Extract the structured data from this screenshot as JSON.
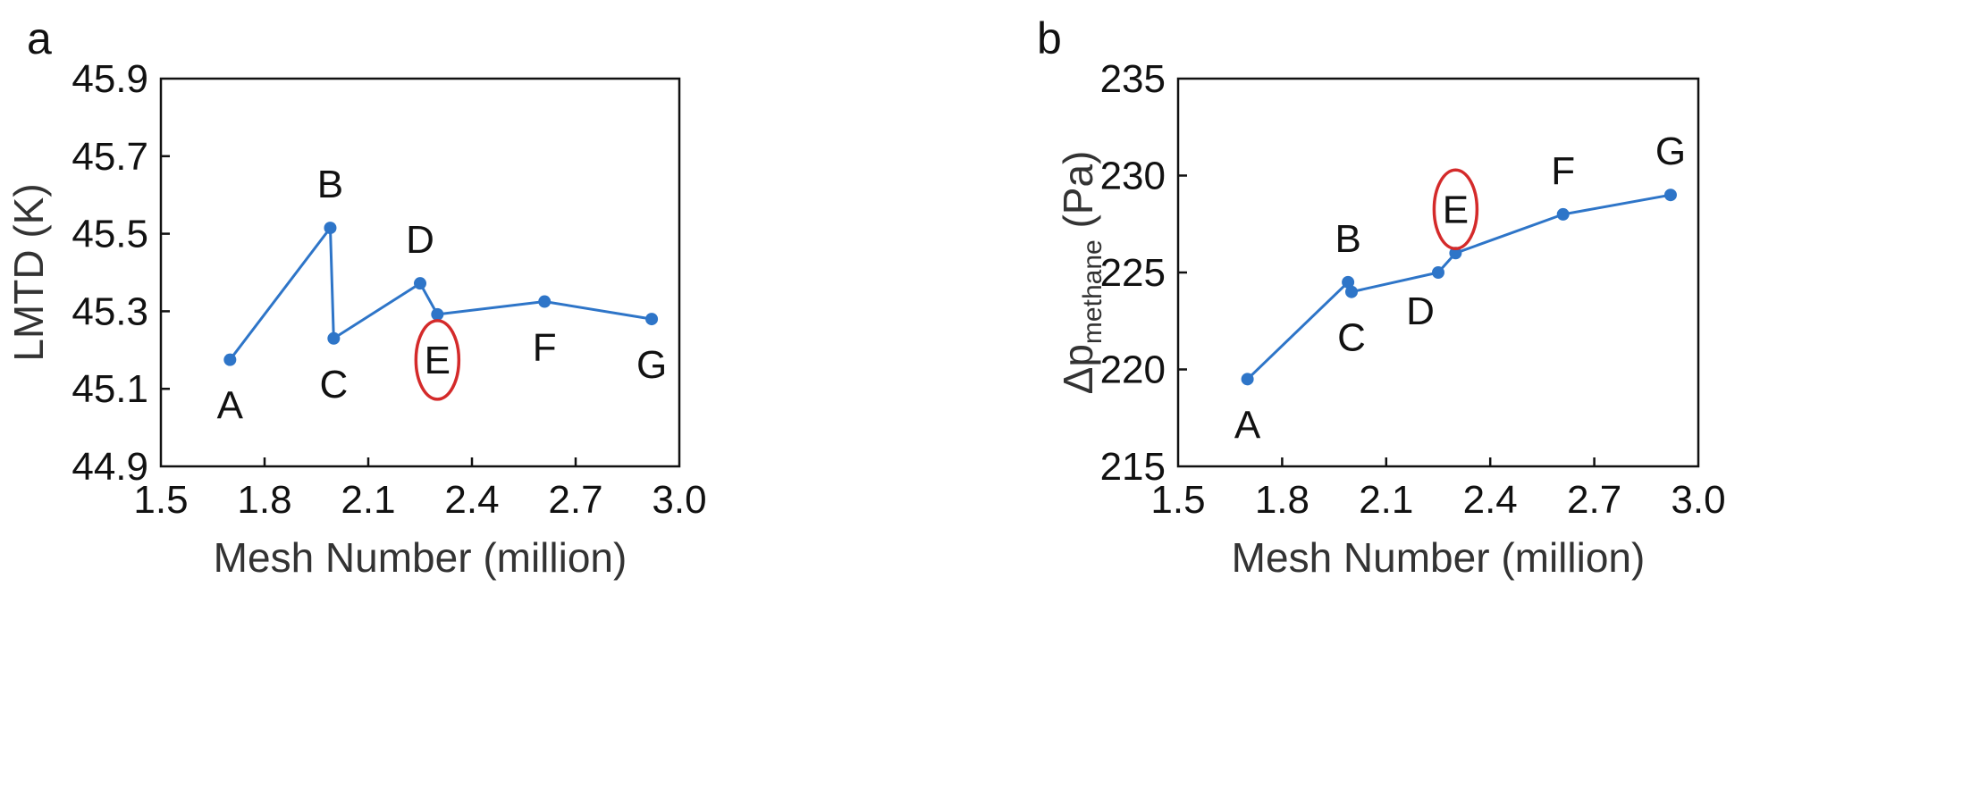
{
  "colors": {
    "series": "#2e75c8",
    "highlight": "#d42a2a",
    "axis": "#111111"
  },
  "chart_data": [
    {
      "type": "line",
      "panel_label": "a",
      "xlabel": "Mesh Number (million)",
      "ylabel": "LMTD (K)",
      "xlim": [
        1.5,
        3.0
      ],
      "ylim": [
        44.9,
        45.9
      ],
      "xticks": [
        "1.5",
        "1.8",
        "2.1",
        "2.4",
        "2.7",
        "3.0"
      ],
      "yticks": [
        "44.9",
        "45.1",
        "45.3",
        "45.5",
        "45.7",
        "45.9"
      ],
      "highlight": "E",
      "points": [
        {
          "label": "A",
          "x": 1.7,
          "y": 45.175,
          "label_pos": "below"
        },
        {
          "label": "B",
          "x": 1.99,
          "y": 45.515,
          "label_pos": "above"
        },
        {
          "label": "C",
          "x": 2.0,
          "y": 45.23,
          "label_pos": "below"
        },
        {
          "label": "D",
          "x": 2.25,
          "y": 45.372,
          "label_pos": "above"
        },
        {
          "label": "E",
          "x": 2.3,
          "y": 45.292,
          "label_pos": "below"
        },
        {
          "label": "F",
          "x": 2.61,
          "y": 45.325,
          "label_pos": "below"
        },
        {
          "label": "G",
          "x": 2.92,
          "y": 45.28,
          "label_pos": "below"
        }
      ]
    },
    {
      "type": "line",
      "panel_label": "b",
      "xlabel": "Mesh Number (million)",
      "ylabel_main": "Δp",
      "ylabel_sub": "methane",
      "ylabel_unit": " (Pa)",
      "xlim": [
        1.5,
        3.0
      ],
      "ylim": [
        215,
        235
      ],
      "xticks": [
        "1.5",
        "1.8",
        "2.1",
        "2.4",
        "2.7",
        "3.0"
      ],
      "yticks": [
        "215",
        "220",
        "225",
        "230",
        "235"
      ],
      "highlight": "E",
      "points": [
        {
          "label": "A",
          "x": 1.7,
          "y": 219.5,
          "label_pos": "below"
        },
        {
          "label": "B",
          "x": 1.99,
          "y": 224.5,
          "label_pos": "above"
        },
        {
          "label": "C",
          "x": 2.0,
          "y": 224.0,
          "label_pos": "below"
        },
        {
          "label": "D",
          "x": 2.25,
          "y": 225.0,
          "label_pos": "below-left"
        },
        {
          "label": "E",
          "x": 2.3,
          "y": 226.0,
          "label_pos": "above"
        },
        {
          "label": "F",
          "x": 2.61,
          "y": 228.0,
          "label_pos": "above"
        },
        {
          "label": "G",
          "x": 2.92,
          "y": 229.0,
          "label_pos": "above"
        }
      ]
    }
  ]
}
